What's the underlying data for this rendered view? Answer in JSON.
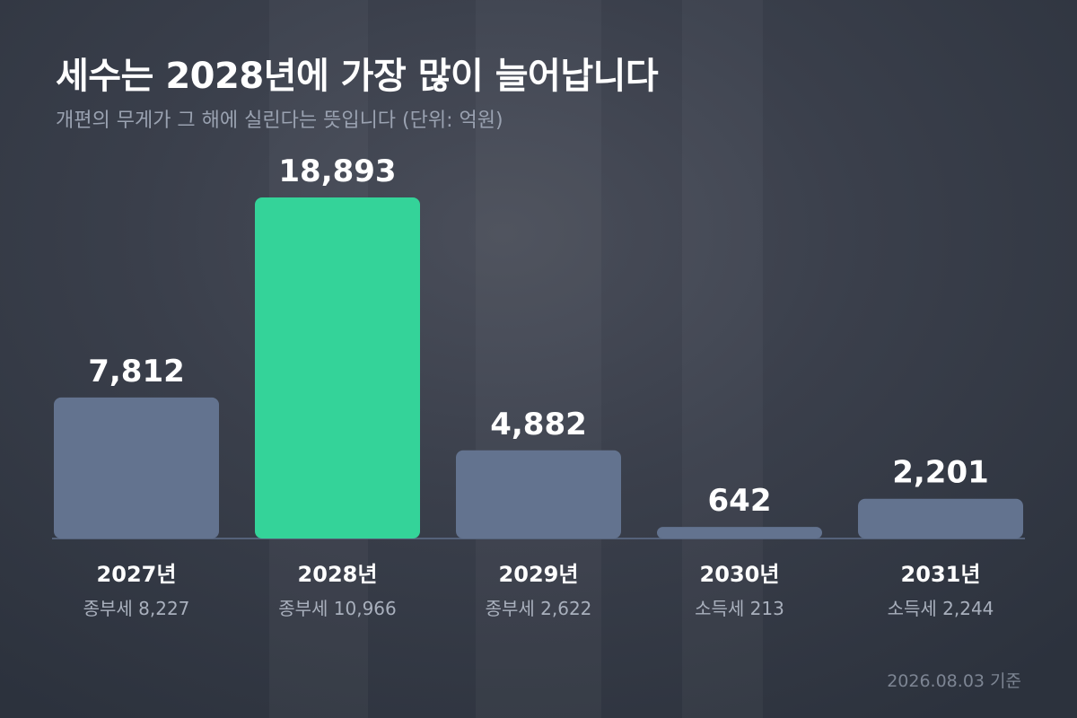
{
  "header": {
    "title": "세수는 2028년에 가장 많이 늘어납니다",
    "subtitle": "개편의 무게가 그 해에 실린다는 뜻입니다 (단위: 억원)"
  },
  "footnote": "2026.08.03 기준",
  "colors": {
    "bar": "#63738f",
    "highlight": "#34d399",
    "baseline": "#55627a"
  },
  "chart_data": {
    "type": "bar",
    "categories": [
      "2027년",
      "2028년",
      "2029년",
      "2030년",
      "2031년"
    ],
    "values": [
      7812,
      18893,
      4882,
      642,
      2201
    ],
    "value_labels": [
      "7,812",
      "18,893",
      "4,882",
      "642",
      "2,201"
    ],
    "sub_labels": [
      "종부세 8,227",
      "종부세 10,966",
      "종부세 2,622",
      "소득세 213",
      "소득세 2,244"
    ],
    "highlight_index": 1,
    "ylim": [
      0,
      18893
    ],
    "grid": false,
    "legend": "none",
    "title": "세수는 2028년에 가장 많이 늘어납니다",
    "xlabel": "",
    "ylabel": ""
  }
}
